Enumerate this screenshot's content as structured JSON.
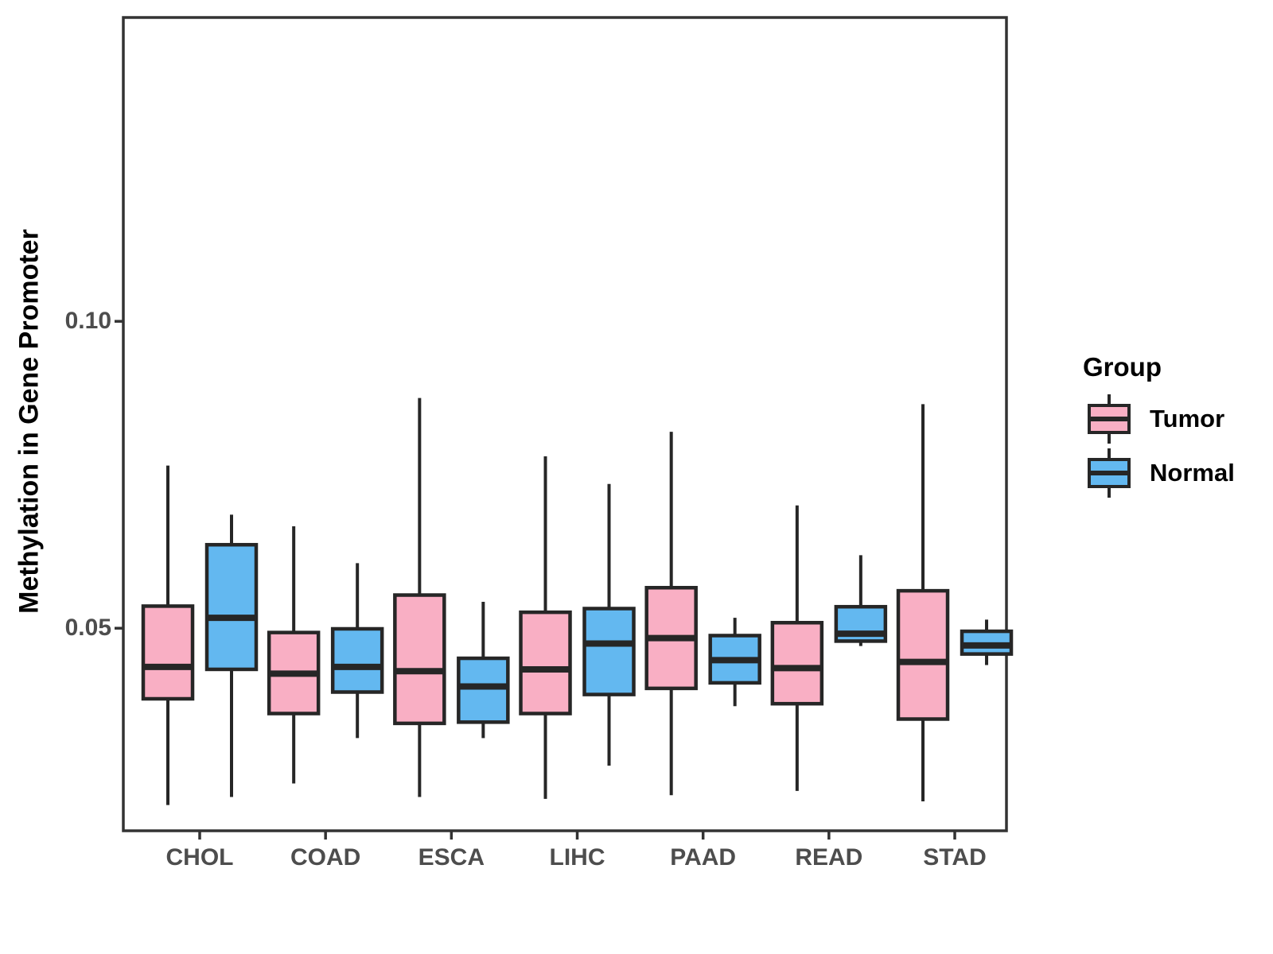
{
  "chart_data": {
    "type": "boxplot",
    "title": "",
    "xlabel": "",
    "ylabel": "Methylation in Gene Promoter",
    "categories": [
      "CHOL",
      "COAD",
      "ESCA",
      "LIHC",
      "PAAD",
      "READ",
      "STAD"
    ],
    "ylim": [
      0.017,
      0.1495
    ],
    "yticks": [
      0.05,
      0.1
    ],
    "ytick_labels": [
      "0.05",
      "0.10"
    ],
    "grid": false,
    "legend": {
      "title": "Group",
      "position": "right",
      "entries": [
        {
          "label": "Tumor",
          "color": "#F9AFC4"
        },
        {
          "label": "Normal",
          "color": "#63B8F0"
        }
      ]
    },
    "series": [
      {
        "name": "Tumor",
        "color": "#F9AFC4",
        "boxes": [
          {
            "category": "CHOL",
            "whisker_low": 0.0212,
            "q1": 0.0385,
            "median": 0.0437,
            "q3": 0.0536,
            "whisker_high": 0.0765
          },
          {
            "category": "COAD",
            "whisker_low": 0.0247,
            "q1": 0.0361,
            "median": 0.0426,
            "q3": 0.0493,
            "whisker_high": 0.0666
          },
          {
            "category": "ESCA",
            "whisker_low": 0.0225,
            "q1": 0.0345,
            "median": 0.043,
            "q3": 0.0554,
            "whisker_high": 0.0875
          },
          {
            "category": "LIHC",
            "whisker_low": 0.0222,
            "q1": 0.0361,
            "median": 0.0433,
            "q3": 0.0526,
            "whisker_high": 0.078
          },
          {
            "category": "PAAD",
            "whisker_low": 0.0228,
            "q1": 0.0402,
            "median": 0.0484,
            "q3": 0.0566,
            "whisker_high": 0.082
          },
          {
            "category": "READ",
            "whisker_low": 0.0235,
            "q1": 0.0377,
            "median": 0.0435,
            "q3": 0.0509,
            "whisker_high": 0.07
          },
          {
            "category": "STAD",
            "whisker_low": 0.0218,
            "q1": 0.0352,
            "median": 0.0445,
            "q3": 0.0561,
            "whisker_high": 0.0865
          }
        ]
      },
      {
        "name": "Normal",
        "color": "#63B8F0",
        "boxes": [
          {
            "category": "CHOL",
            "whisker_low": 0.0225,
            "q1": 0.0433,
            "median": 0.0517,
            "q3": 0.0636,
            "whisker_high": 0.0685
          },
          {
            "category": "COAD",
            "whisker_low": 0.0321,
            "q1": 0.0396,
            "median": 0.0437,
            "q3": 0.0499,
            "whisker_high": 0.0606
          },
          {
            "category": "ESCA",
            "whisker_low": 0.0321,
            "q1": 0.0347,
            "median": 0.0405,
            "q3": 0.0451,
            "whisker_high": 0.0543
          },
          {
            "category": "LIHC",
            "whisker_low": 0.0276,
            "q1": 0.0392,
            "median": 0.0475,
            "q3": 0.0532,
            "whisker_high": 0.0735
          },
          {
            "category": "PAAD",
            "whisker_low": 0.0373,
            "q1": 0.0411,
            "median": 0.0448,
            "q3": 0.0488,
            "whisker_high": 0.0517
          },
          {
            "category": "READ",
            "whisker_low": 0.0471,
            "q1": 0.0479,
            "median": 0.0491,
            "q3": 0.0535,
            "whisker_high": 0.0619
          },
          {
            "category": "STAD",
            "whisker_low": 0.044,
            "q1": 0.0458,
            "median": 0.0472,
            "q3": 0.0495,
            "whisker_high": 0.0514
          }
        ]
      }
    ]
  },
  "style": {
    "box_outline_color": "#262626",
    "panel_border_color": "#333333",
    "axis_tick_color": "#333333",
    "axis_text_color": "#4d4d4d",
    "title_text_color": "#000000",
    "background_color": "#ffffff"
  }
}
